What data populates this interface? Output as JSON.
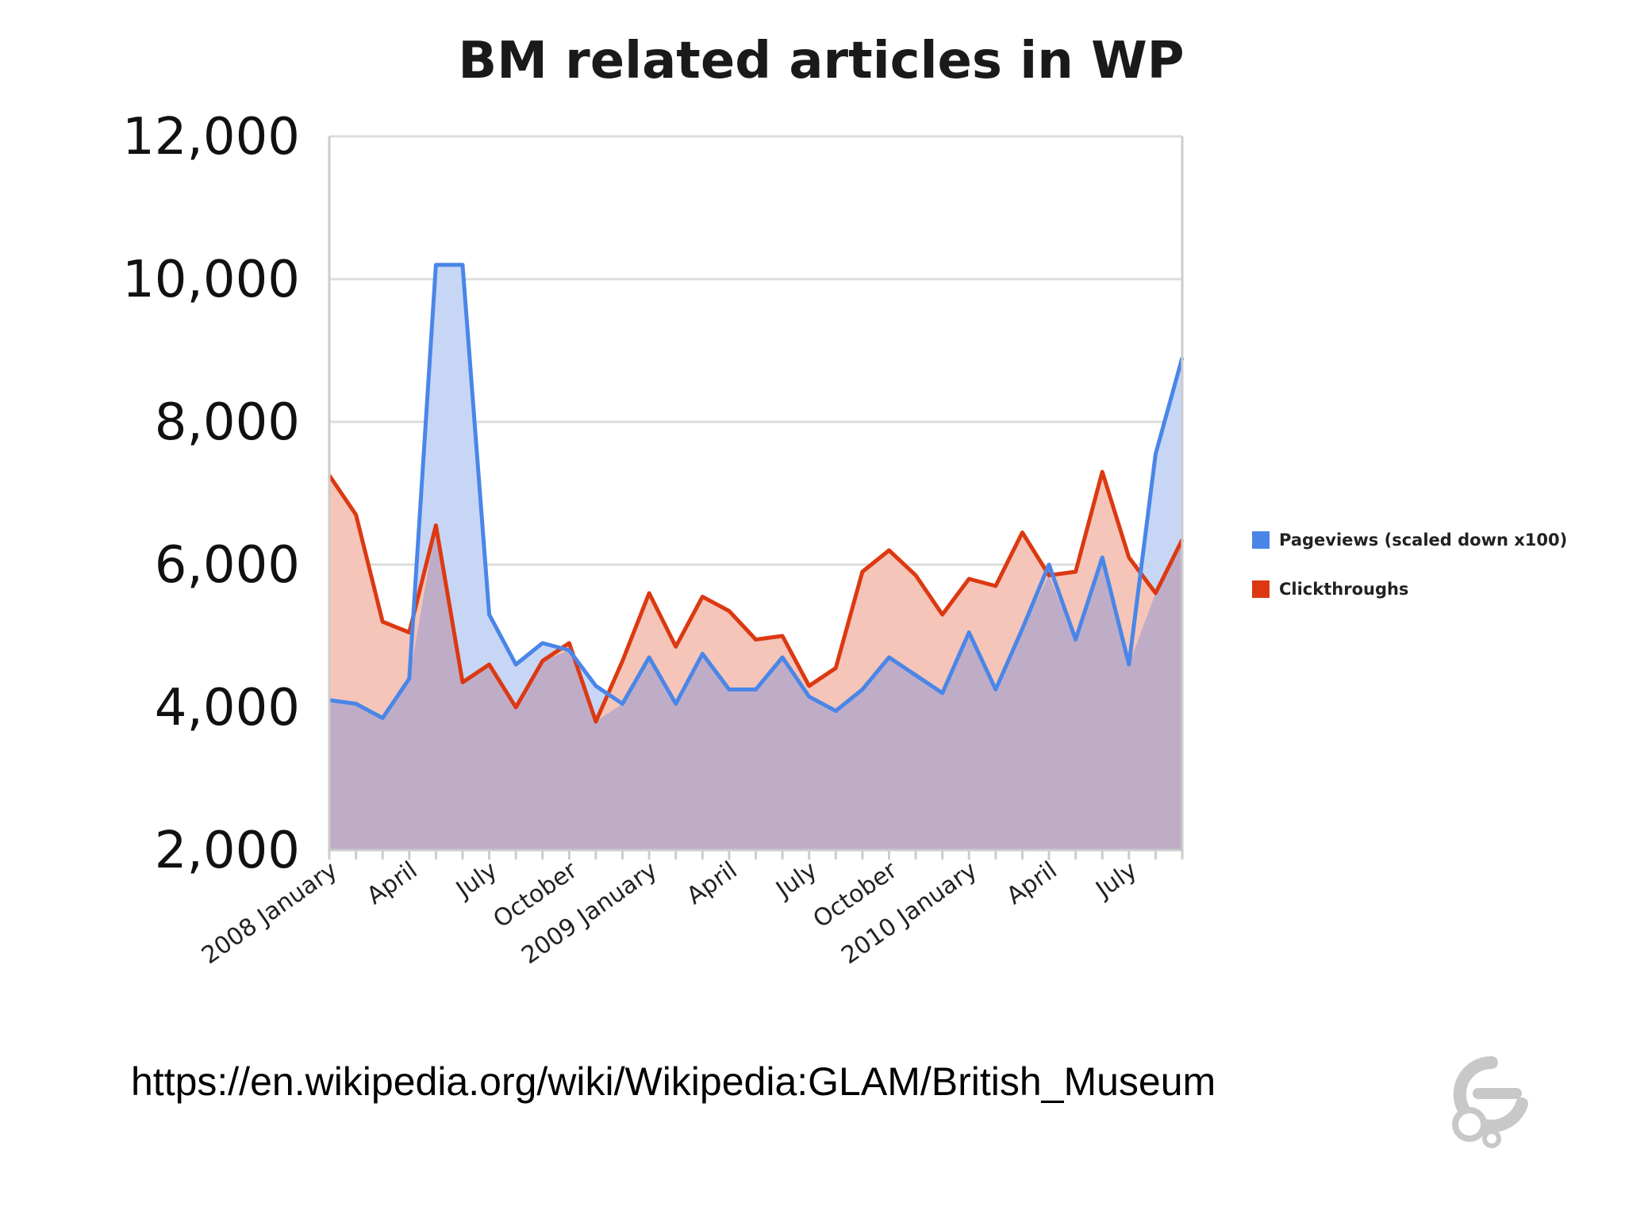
{
  "chart_data": {
    "type": "area",
    "title": "BM related articles in WP",
    "xlabel": "",
    "ylabel": "",
    "ylim": [
      2000,
      12000
    ],
    "yticks": [
      12000,
      10000,
      8000,
      6000,
      4000,
      2000
    ],
    "ytick_labels": [
      "12,000",
      "10,000",
      "8,000",
      "6,000",
      "4,000",
      "2,000"
    ],
    "grid": true,
    "legend_position": "right",
    "x": [
      "2008-01",
      "2008-02",
      "2008-03",
      "2008-04",
      "2008-05",
      "2008-06",
      "2008-07",
      "2008-08",
      "2008-09",
      "2008-10",
      "2008-11",
      "2008-12",
      "2009-01",
      "2009-02",
      "2009-03",
      "2009-04",
      "2009-05",
      "2009-06",
      "2009-07",
      "2009-08",
      "2009-09",
      "2009-10",
      "2009-11",
      "2009-12",
      "2010-01",
      "2010-02",
      "2010-03",
      "2010-04",
      "2010-05",
      "2010-06",
      "2010-07",
      "2010-08",
      "2010-09"
    ],
    "x_tick_labels": [
      {
        "index": 0,
        "label": "2008 January"
      },
      {
        "index": 3,
        "label": "April"
      },
      {
        "index": 6,
        "label": "July"
      },
      {
        "index": 9,
        "label": "October"
      },
      {
        "index": 12,
        "label": "2009 January"
      },
      {
        "index": 15,
        "label": "April"
      },
      {
        "index": 18,
        "label": "July"
      },
      {
        "index": 21,
        "label": "October"
      },
      {
        "index": 24,
        "label": "2010 January"
      },
      {
        "index": 27,
        "label": "April"
      },
      {
        "index": 30,
        "label": "July"
      }
    ],
    "series": [
      {
        "name": "Pageviews (scaled down x100)",
        "color": "#4a86e8",
        "fill": "#c7d6f5",
        "values": [
          4100,
          4050,
          3850,
          4400,
          10200,
          10200,
          5300,
          4600,
          4900,
          4800,
          4300,
          4050,
          4700,
          4050,
          4750,
          4250,
          4250,
          4700,
          4150,
          3950,
          4250,
          4700,
          4450,
          4200,
          5050,
          4250,
          5100,
          6000,
          4950,
          6100,
          4600,
          7550,
          8900
        ]
      },
      {
        "name": "Clickthroughs",
        "color": "#dc3912",
        "fill": "#f4c5b8",
        "values": [
          7250,
          6700,
          5200,
          5050,
          6550,
          4350,
          4600,
          4000,
          4650,
          4900,
          3800,
          4650,
          5600,
          4850,
          5550,
          5350,
          4950,
          5000,
          4300,
          4550,
          5900,
          6200,
          5850,
          5300,
          5800,
          5700,
          6450,
          5850,
          5900,
          7300,
          6100,
          5600,
          6350
        ]
      }
    ]
  },
  "footer": {
    "source_url": "https://en.wikipedia.org/wiki/Wikipedia:GLAM/British_Museum"
  },
  "colors": {
    "overlap_fill": "#bfadc8",
    "grid": "#dddddd",
    "axis": "#cccccc"
  },
  "icons": {
    "logo": "wikimedia-community-logo"
  }
}
